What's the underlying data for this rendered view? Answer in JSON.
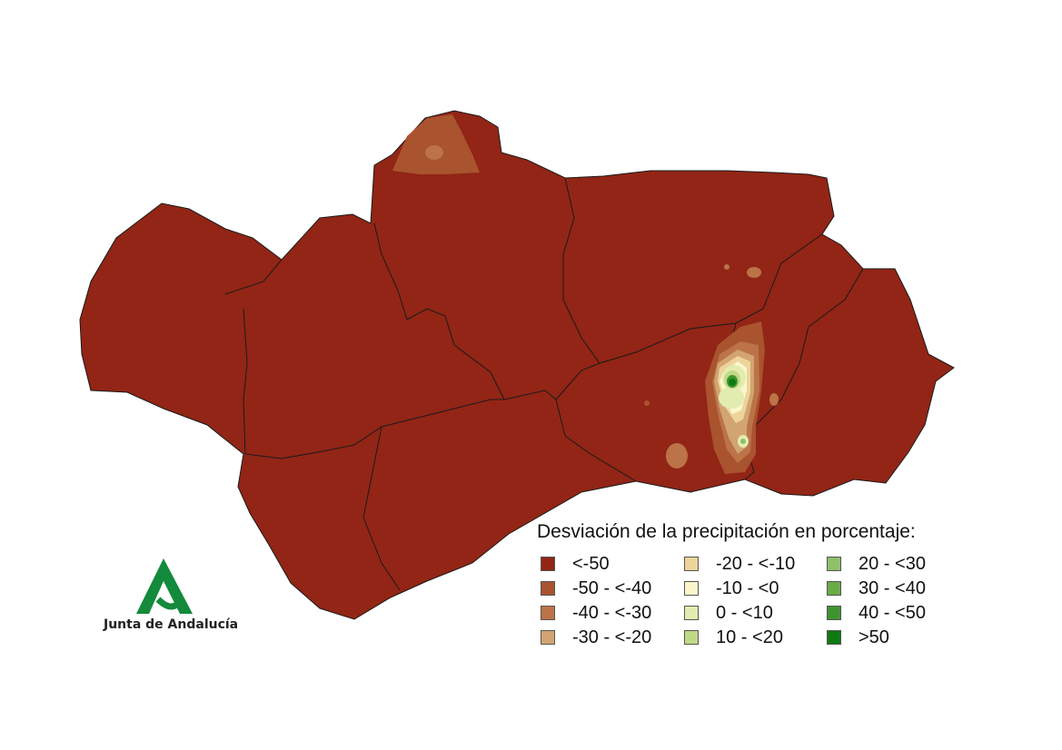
{
  "legend": {
    "title": "Desviación de la precipitación en porcentaje:",
    "items": [
      {
        "label": "<-50",
        "color": "#922515"
      },
      {
        "label": "-50 - <-40",
        "color": "#a9532f"
      },
      {
        "label": "-40 - <-30",
        "color": "#bb7347"
      },
      {
        "label": "-30 - <-20",
        "color": "#d2a472"
      },
      {
        "label": "-20 - <-10",
        "color": "#ecd49b"
      },
      {
        "label": "-10 - <0",
        "color": "#fbf6cc"
      },
      {
        "label": "0 - <10",
        "color": "#e3ecb0"
      },
      {
        "label": "10 - <20",
        "color": "#c0d987"
      },
      {
        "label": "20 - <30",
        "color": "#8fc06a"
      },
      {
        "label": "30 - <40",
        "color": "#6aab48"
      },
      {
        "label": "40 - <50",
        "color": "#3f9430"
      },
      {
        "label": ">50",
        "color": "#0f7a12"
      }
    ]
  },
  "logo": {
    "text": "Junta de Andalucía",
    "color": "#138a3c"
  },
  "map": {
    "base_color": "#922515",
    "border_color": "#1a1a1a"
  }
}
